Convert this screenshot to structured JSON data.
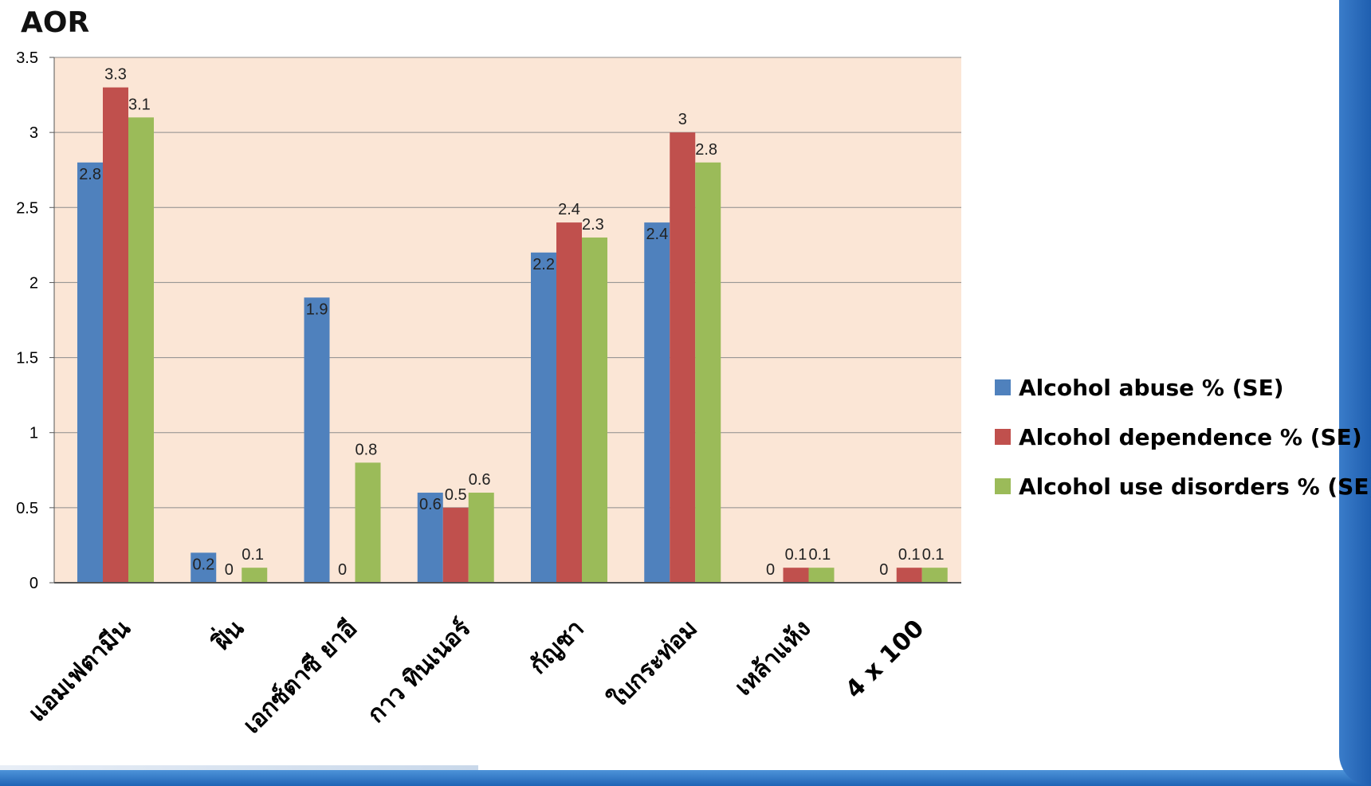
{
  "chart_data": {
    "type": "bar",
    "title": "AOR",
    "categories": [
      "แอมเฟตามีน",
      "ฝิ่น",
      "เอกซ์ตาซี ยาอี",
      "กาว ทินเนอร์",
      "กัญชา",
      "ใบกระท่อม",
      "เหล้าแห้ง",
      "4 x 100"
    ],
    "series": [
      {
        "name": "Alcohol abuse % (SE)",
        "color": "#4f81bd",
        "values": [
          2.8,
          0.2,
          1.9,
          0.6,
          2.2,
          2.4,
          0,
          0
        ]
      },
      {
        "name": "Alcohol dependence % (SE)",
        "color": "#c0504d",
        "values": [
          3.3,
          0,
          0,
          0.5,
          2.4,
          3,
          0.1,
          0.1
        ]
      },
      {
        "name": "Alcohol use disorders % (SE)",
        "color": "#9bbb59",
        "values": [
          3.1,
          0.1,
          0.8,
          0.6,
          2.3,
          2.8,
          0.1,
          0.1
        ]
      }
    ],
    "ylim": [
      0,
      3.5
    ],
    "yticks": [
      "0",
      "0.5",
      "1",
      "1.5",
      "2",
      "2.5",
      "3",
      "3.5"
    ],
    "grid": true,
    "legend_position": "right",
    "plot_background": "#fbe6d6"
  }
}
